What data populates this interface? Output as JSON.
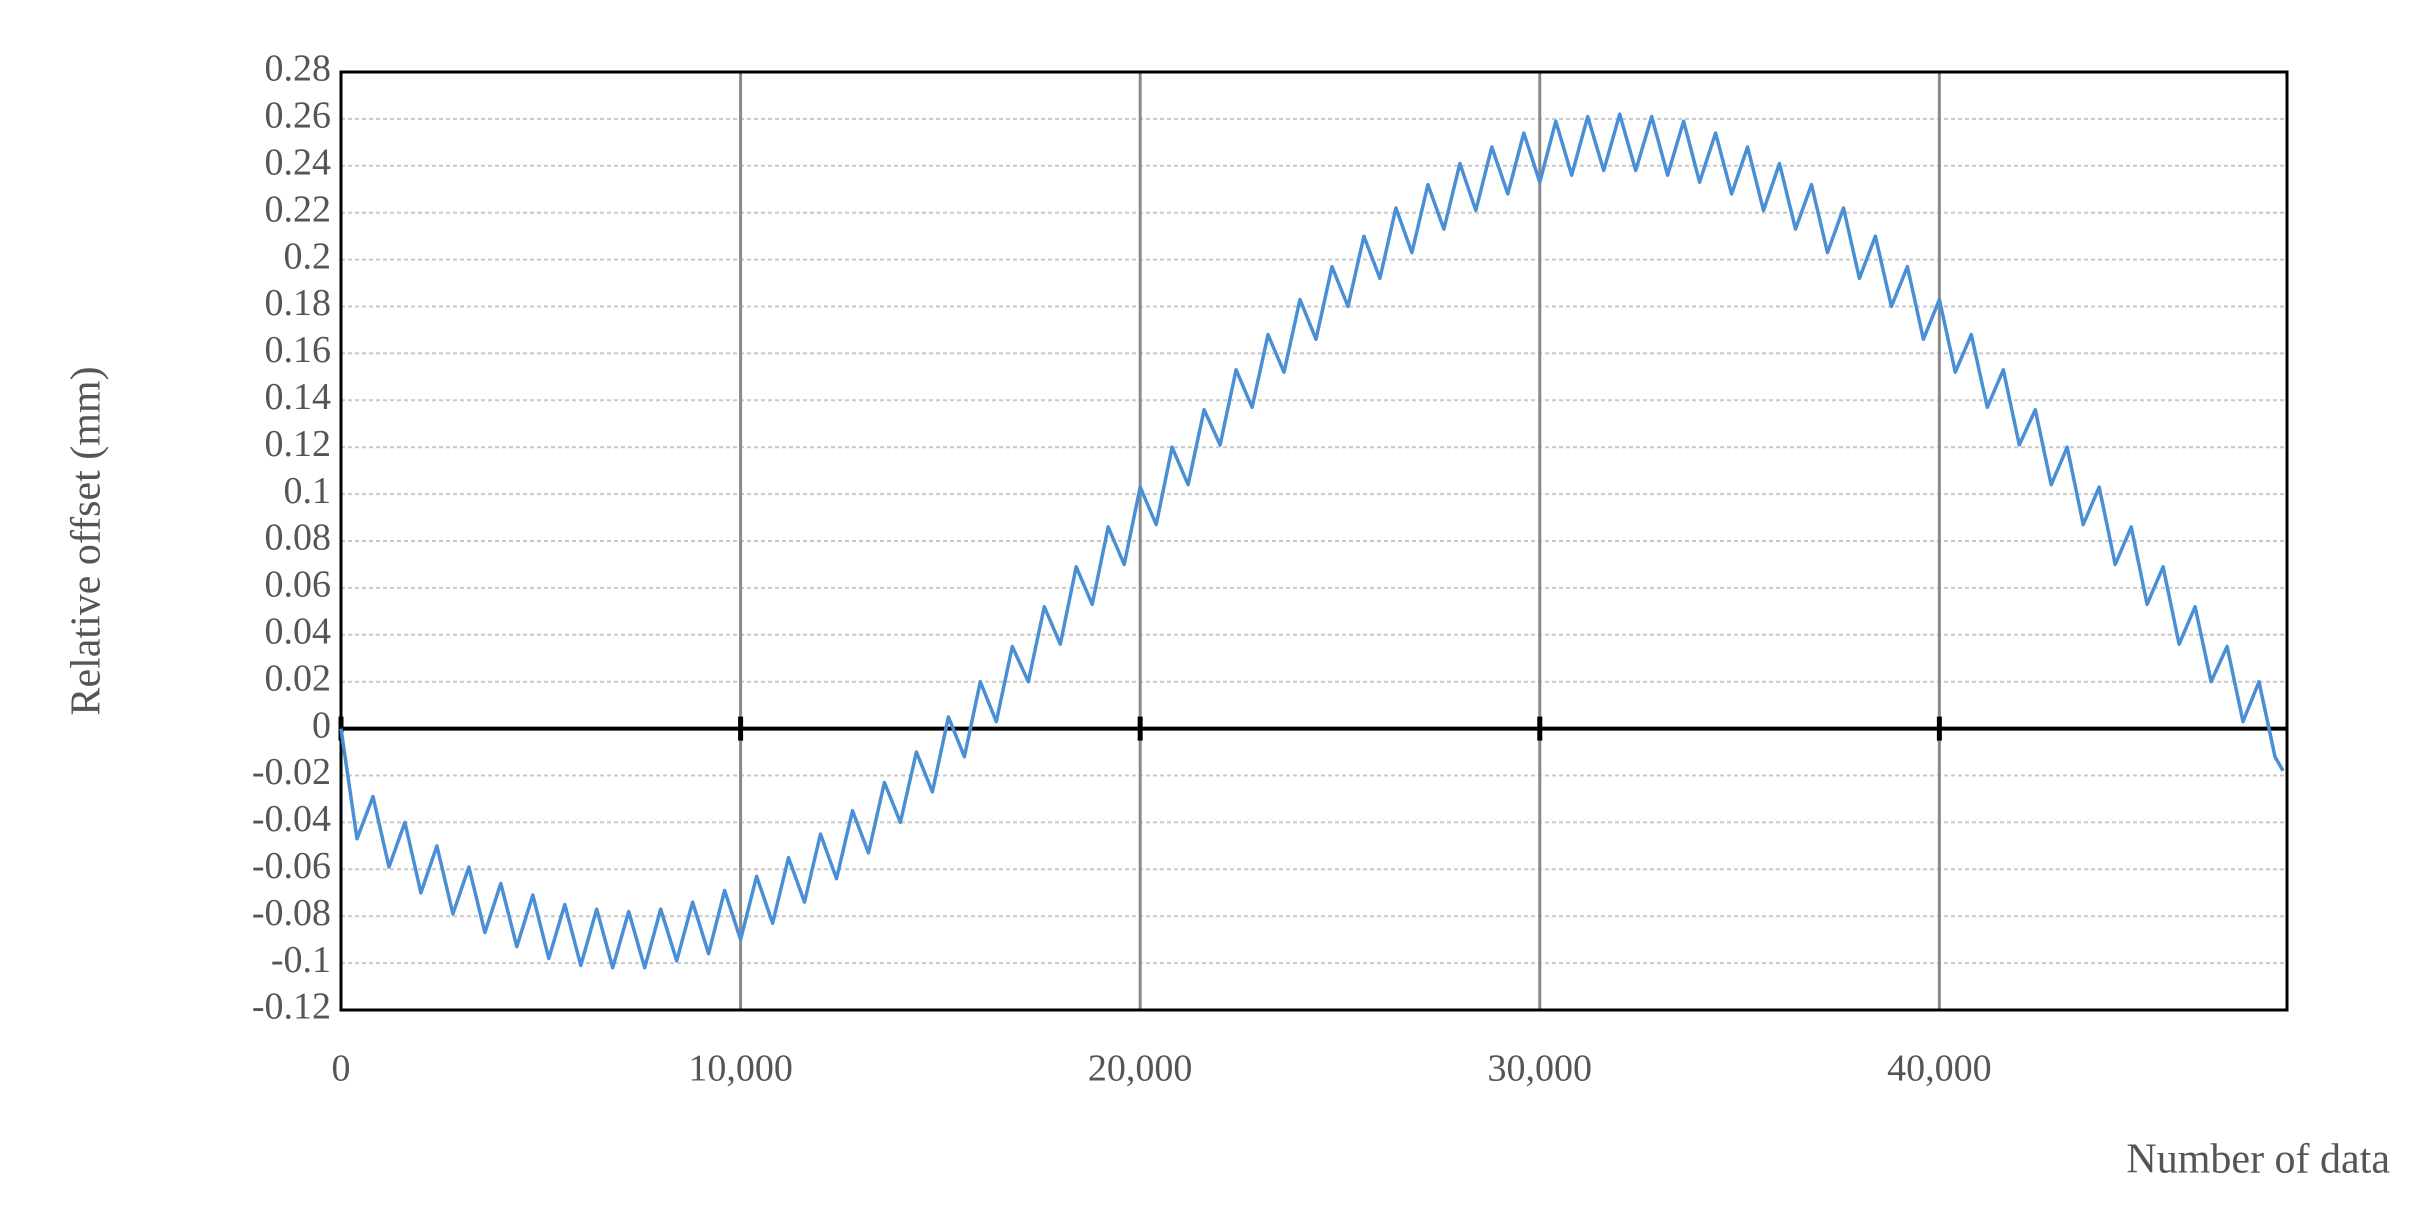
{
  "chart_data": {
    "type": "line",
    "y_label": "Relative offset (mm)",
    "x_label": "Number of data",
    "x": [
      0,
      400,
      800,
      1200,
      1600,
      2000,
      2400,
      2800,
      3200,
      3600,
      4000,
      4400,
      4800,
      5200,
      5600,
      6000,
      6400,
      6800,
      7200,
      7600,
      8000,
      8400,
      8800,
      9200,
      9600,
      10000,
      10400,
      10800,
      11200,
      11600,
      12000,
      12400,
      12800,
      13200,
      13600,
      14000,
      14400,
      14800,
      15200,
      15600,
      16000,
      16400,
      16800,
      17200,
      17600,
      18000,
      18400,
      18800,
      19200,
      19600,
      20000,
      20400,
      20800,
      21200,
      21600,
      22000,
      22400,
      22800,
      23200,
      23600,
      24000,
      24400,
      24800,
      25200,
      25600,
      26000,
      26400,
      26800,
      27200,
      27600,
      28000,
      28400,
      28800,
      29200,
      29600,
      30000,
      30400,
      30800,
      31200,
      31600,
      32000,
      32400,
      32800,
      33200,
      33600,
      34000,
      34400,
      34800,
      35200,
      35600,
      36000,
      36400,
      36800,
      37200,
      37600,
      38000,
      38400,
      38800,
      39200,
      39600,
      40000,
      40400,
      40800,
      41200,
      41600,
      42000,
      42400,
      42800,
      43200,
      43600,
      44000,
      44400,
      44800,
      45200,
      45600,
      46000,
      46400,
      46800,
      47200,
      47600,
      48000,
      48400,
      48600
    ],
    "series": [
      {
        "color": "#4a8fd6",
        "values": [
          0.0,
          -0.047,
          -0.029,
          -0.059,
          -0.04,
          -0.07,
          -0.05,
          -0.079,
          -0.059,
          -0.087,
          -0.066,
          -0.093,
          -0.071,
          -0.098,
          -0.075,
          -0.101,
          -0.077,
          -0.102,
          -0.078,
          -0.102,
          -0.077,
          -0.099,
          -0.074,
          -0.096,
          -0.069,
          -0.09,
          -0.063,
          -0.083,
          -0.055,
          -0.074,
          -0.045,
          -0.064,
          -0.035,
          -0.053,
          -0.023,
          -0.04,
          -0.01,
          -0.027,
          0.005,
          -0.012,
          0.02,
          0.003,
          0.035,
          0.02,
          0.052,
          0.036,
          0.069,
          0.053,
          0.086,
          0.07,
          0.103,
          0.087,
          0.12,
          0.104,
          0.136,
          0.121,
          0.153,
          0.137,
          0.168,
          0.152,
          0.183,
          0.166,
          0.197,
          0.18,
          0.21,
          0.192,
          0.222,
          0.203,
          0.232,
          0.213,
          0.241,
          0.221,
          0.248,
          0.228,
          0.254,
          0.233,
          0.259,
          0.236,
          0.261,
          0.238,
          0.262,
          0.238,
          0.261,
          0.236,
          0.259,
          0.233,
          0.254,
          0.228,
          0.248,
          0.221,
          0.241,
          0.213,
          0.232,
          0.203,
          0.222,
          0.192,
          0.21,
          0.18,
          0.197,
          0.166,
          0.183,
          0.152,
          0.168,
          0.137,
          0.153,
          0.121,
          0.136,
          0.104,
          0.12,
          0.087,
          0.103,
          0.07,
          0.086,
          0.053,
          0.069,
          0.036,
          0.052,
          0.02,
          0.035,
          0.003,
          0.02,
          -0.012,
          -0.018
        ]
      }
    ],
    "xlim": [
      0,
      48700
    ],
    "xticks": [
      0,
      {
        "value": 10000,
        "label": "10,000"
      },
      {
        "value": 20000,
        "label": "20,000"
      },
      {
        "value": 30000,
        "label": "30,000"
      },
      {
        "value": 40000,
        "label": "40,000"
      }
    ],
    "ylim": [
      -0.12,
      0.28
    ],
    "yticks": [
      -0.12,
      -0.1,
      -0.08,
      -0.06,
      -0.04,
      -0.02,
      0,
      0.02,
      0.04,
      0.06,
      0.08,
      0.1,
      0.12,
      0.14,
      0.16,
      0.18,
      0.2,
      0.22,
      0.24,
      0.26,
      0.28
    ],
    "grid": true
  }
}
